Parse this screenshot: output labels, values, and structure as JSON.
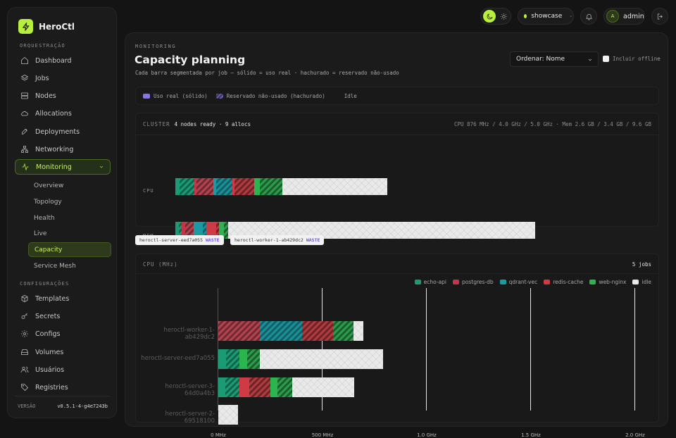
{
  "brand": {
    "name": "HeroCtl"
  },
  "sidebar": {
    "section_orchestration": "ORQUESTRAÇÃO",
    "orchestration": [
      {
        "label": "Dashboard",
        "icon": "home-icon"
      },
      {
        "label": "Jobs",
        "icon": "layers-icon"
      },
      {
        "label": "Nodes",
        "icon": "server-icon"
      },
      {
        "label": "Allocations",
        "icon": "cloud-icon"
      },
      {
        "label": "Deployments",
        "icon": "rocket-icon"
      },
      {
        "label": "Networking",
        "icon": "network-icon"
      },
      {
        "label": "Monitoring",
        "icon": "activity-icon",
        "active": true
      }
    ],
    "monitoring_sub": [
      {
        "label": "Overview"
      },
      {
        "label": "Topology"
      },
      {
        "label": "Health"
      },
      {
        "label": "Live"
      },
      {
        "label": "Capacity",
        "active": true
      },
      {
        "label": "Service Mesh"
      }
    ],
    "section_config": "CONFIGURAÇÕES",
    "config": [
      {
        "label": "Templates",
        "icon": "box-icon"
      },
      {
        "label": "Secrets",
        "icon": "key-icon"
      },
      {
        "label": "Configs",
        "icon": "gear-icon"
      },
      {
        "label": "Volumes",
        "icon": "drive-icon"
      },
      {
        "label": "Usuários",
        "icon": "users-icon"
      },
      {
        "label": "Registries",
        "icon": "tag-icon"
      }
    ],
    "version_label": "VERSÃO",
    "version_value": "v0.5.1-4-g4e7243b"
  },
  "topbar": {
    "environment": "showcase",
    "user_initial": "A",
    "user": "admin"
  },
  "page": {
    "kicker": "MONITORING",
    "title": "Capacity planning",
    "subtitle": "Cada barra segmentada por job — sólido = uso real · hachurado = reservado não-usado",
    "sort_value": "Ordenar: Nome",
    "include_offline": "Incluir offline"
  },
  "legend": {
    "solid": "Uso real (sólido)",
    "hatched": "Reservado não-usado (hachurado)",
    "idle": "Idle"
  },
  "cluster": {
    "label": "CLUSTER",
    "summary": "4 nodes ready · 9 allocs",
    "stats": "CPU 876 MHz / 4.0 GHz / 5.0 GHz  ·  Mem 2.6 GB / 3.4 GB / 9.6 GB",
    "rows": [
      "CPU",
      "MEM"
    ]
  },
  "waste_tags": [
    {
      "node": "heroctl-server-eed7a055",
      "tag": "WASTE"
    },
    {
      "node": "heroctl-worker-1-ab429dc2",
      "tag": "WASTE"
    }
  ],
  "cpu_chart": {
    "title": "CPU (MHz)",
    "jobs_count": "5 jobs",
    "legend": [
      {
        "name": "echo-api",
        "color": "#1a9b73"
      },
      {
        "name": "postgres-db",
        "color": "#c23648"
      },
      {
        "name": "qdrant-vec",
        "color": "#1b9aa3"
      },
      {
        "name": "redis-cache",
        "color": "#d03a44"
      },
      {
        "name": "web-nginx",
        "color": "#2ab54e"
      },
      {
        "name": "idle",
        "color": "#e9e9e9"
      }
    ],
    "nodes": [
      "heroctl-worker-1-ab429dc2",
      "heroctl-server-eed7a055",
      "heroctl-server-3-64d0a4b3",
      "heroctl-server-2-69518100"
    ],
    "ticks": [
      "0 MHz",
      "500 MHz",
      "1.0 GHz",
      "1.5 GHz",
      "2.0 GHz"
    ]
  }
}
